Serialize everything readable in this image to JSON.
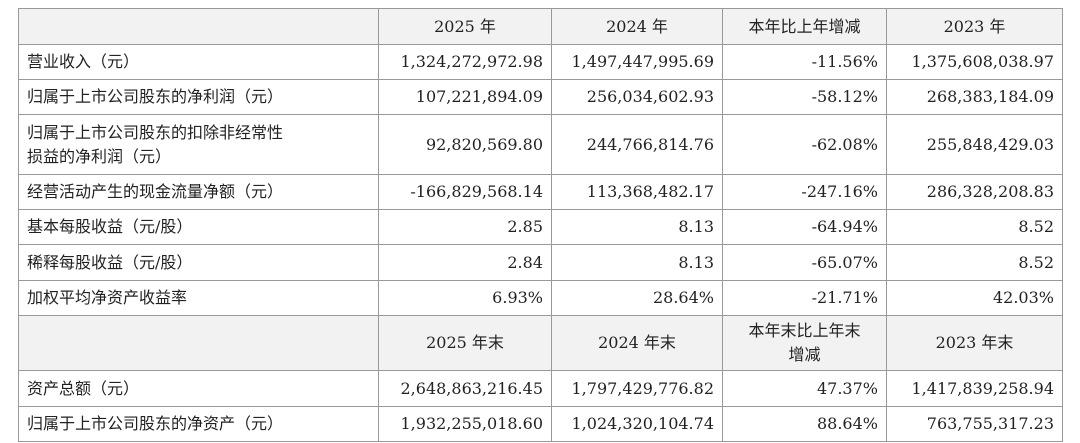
{
  "table": {
    "header": [
      "2025 年",
      "2024 年",
      "本年比上年增减",
      "2023 年"
    ],
    "rows": [
      [
        "营业收入（元）",
        "1,324,272,972.98",
        "1,497,447,995.69",
        "-11.56%",
        "1,375,608,038.97"
      ],
      [
        "归属于上市公司股东的净利润（元）",
        "107,221,894.09",
        "256,034,602.93",
        "-58.12%",
        "268,383,184.09"
      ],
      [
        "归属于上市公司股东的扣除非经常性损益的净利润（元）",
        "92,820,569.80",
        "244,766,814.76",
        "-62.08%",
        "255,848,429.03"
      ],
      [
        "经营活动产生的现金流量净额（元）",
        "-166,829,568.14",
        "113,368,482.17",
        "-247.16%",
        "286,328,208.83"
      ],
      [
        "基本每股收益（元/股）",
        "2.85",
        "8.13",
        "-64.94%",
        "8.52"
      ],
      [
        "稀释每股收益（元/股）",
        "2.84",
        "8.13",
        "-65.07%",
        "8.52"
      ],
      [
        "加权平均净资产收益率",
        "6.93%",
        "28.64%",
        "-21.71%",
        "42.03%"
      ]
    ],
    "header2": [
      "2025 年末",
      "2024 年末",
      "本年末比上年末增减",
      "2023 年末"
    ],
    "rows2": [
      [
        "资产总额（元）",
        "2,648,863,216.45",
        "1,797,429,776.82",
        "47.37%",
        "1,417,839,258.94"
      ],
      [
        "归属于上市公司股东的净资产（元）",
        "1,932,255,018.60",
        "1,024,320,104.74",
        "88.64%",
        "763,755,317.23"
      ]
    ]
  }
}
